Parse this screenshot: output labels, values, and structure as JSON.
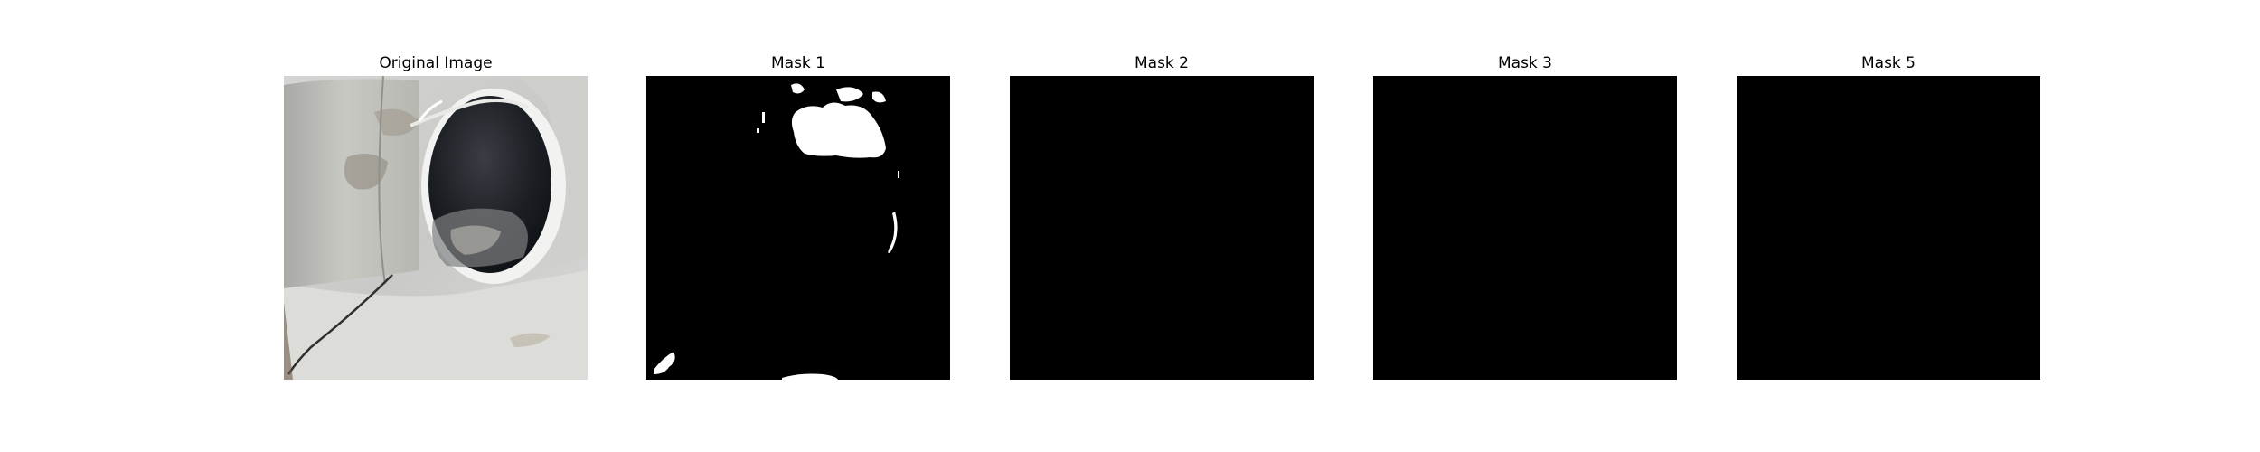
{
  "figure": {
    "panels": [
      {
        "title": "Original Image",
        "content": "photo"
      },
      {
        "title": "Mask 1",
        "content": "mask"
      },
      {
        "title": "Mask 2",
        "content": "mask"
      },
      {
        "title": "Mask 3",
        "content": "mask"
      },
      {
        "title": "Mask 5",
        "content": "mask"
      }
    ],
    "colors": {
      "background": "#ffffff",
      "mask_background": "#000000",
      "mask_foreground": "#ffffff"
    }
  }
}
